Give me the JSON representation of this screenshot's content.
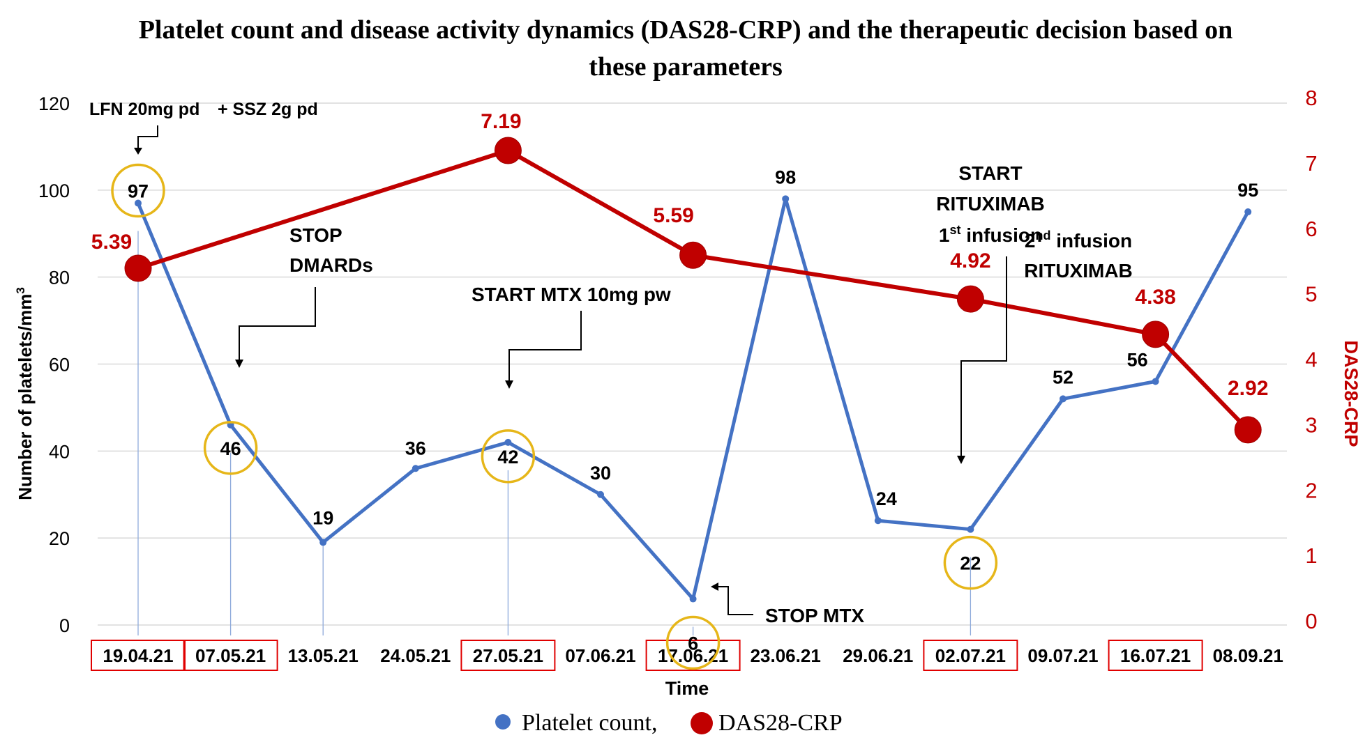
{
  "chart_data": {
    "type": "line",
    "title_line1": "Platelet count and disease activity dynamics (DAS28-CRP) and the therapeutic decision based on",
    "title_line2": "these parameters",
    "xlabel": "Time",
    "ylabel": "Number of platelets/mm",
    "ylabel_sup": "3",
    "y2label": "DAS28-CRP",
    "ylim": [
      0,
      120
    ],
    "yticks": [
      0,
      20,
      40,
      60,
      80,
      100,
      120
    ],
    "y2lim": [
      0,
      8
    ],
    "y2ticks": [
      0,
      1,
      2,
      3,
      4,
      5,
      6,
      7,
      8
    ],
    "categories": [
      "19.04.21",
      "07.05.21",
      "13.05.21",
      "24.05.21",
      "27.05.21",
      "07.06.21",
      "17.06.21",
      "23.06.21",
      "29.06.21",
      "02.07.21",
      "09.07.21",
      "16.07.21",
      "08.09.21"
    ],
    "boxed_categories": [
      0,
      1,
      4,
      6,
      9,
      11
    ],
    "series": [
      {
        "name": "Platelet count,",
        "axis": "left",
        "color": "#4472c4",
        "values": [
          97,
          46,
          19,
          36,
          42,
          30,
          6,
          98,
          24,
          22,
          52,
          56,
          95
        ],
        "labels": [
          "97",
          "46",
          "19",
          "36",
          "42",
          "30",
          "6",
          "98",
          "24",
          "22",
          "52",
          "56",
          "95"
        ],
        "circled_indices": [
          0,
          1,
          4,
          6,
          9
        ]
      },
      {
        "name": "DAS28-CRP",
        "axis": "right",
        "color": "#c00000",
        "points": [
          {
            "category_index": 0,
            "value": 5.39,
            "label": "5.39"
          },
          {
            "category_index": 4,
            "value": 7.19,
            "label": "7.19"
          },
          {
            "category_index": 6,
            "value": 5.59,
            "label": "5.59"
          },
          {
            "category_index": 9,
            "value": 4.92,
            "label": "4.92"
          },
          {
            "category_index": 11,
            "value": 4.38,
            "label": "4.38"
          },
          {
            "category_index": 12,
            "value": 2.92,
            "label": "2.92"
          }
        ]
      }
    ],
    "annotations": {
      "lfn": "LFN 20mg pd",
      "ssz": "+ SSZ 2g pd",
      "stop_dmards_1": "STOP",
      "stop_dmards_2": "DMARDs",
      "start_mtx": "START MTX 10mg pw",
      "stop_mtx": "STOP MTX",
      "rtx1_1": "START",
      "rtx1_2": "RITUXIMAB",
      "rtx1_3_num": "1",
      "rtx1_3_sup": "st",
      "rtx1_3_rest": " infusion",
      "rtx2_1_num": "2",
      "rtx2_1_sup": "nd",
      "rtx2_1_rest": " infusion",
      "rtx2_2": "RITUXIMAB"
    },
    "legend_position": "bottom",
    "colors": {
      "platelet": "#4472c4",
      "das": "#c00000",
      "circle": "#e6b619",
      "box": "#e00000",
      "grid": "#d9d9d9"
    }
  }
}
